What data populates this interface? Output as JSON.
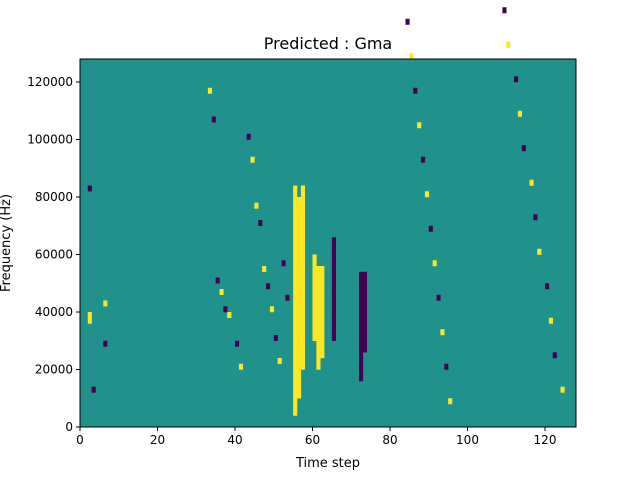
{
  "chart_data": {
    "type": "heatmap",
    "title": "Predicted : Gma",
    "xlabel": "Time step",
    "ylabel": "Frequency (Hz)",
    "xlim": [
      0,
      128
    ],
    "ylim": [
      0,
      128000
    ],
    "xticks": [
      0,
      20,
      40,
      60,
      80,
      100,
      120
    ],
    "xtick_labels": [
      "0",
      "20",
      "40",
      "60",
      "80",
      "100",
      "120"
    ],
    "yticks": [
      0,
      20000,
      40000,
      60000,
      80000,
      100000,
      120000
    ],
    "ytick_labels": [
      "0",
      "20000",
      "40000",
      "60000",
      "80000",
      "100000",
      "120000"
    ],
    "bins": {
      "time_steps": 128,
      "frequency_bins": 64,
      "bin_width_hz": 2000
    },
    "colormap": {
      "low": "#440154",
      "mid": "#21918c",
      "high": "#fde725"
    },
    "levels": {
      "background": "mid",
      "others": [
        "low",
        "high"
      ]
    },
    "vertical_bands": [
      {
        "time_step": 55,
        "value": "high",
        "frequency_range": [
          4000,
          84000
        ]
      },
      {
        "time_step": 56,
        "value": "high",
        "frequency_range": [
          10000,
          80000
        ]
      },
      {
        "time_step": 57,
        "value": "high",
        "frequency_range": [
          20000,
          84000
        ]
      },
      {
        "time_step": 60,
        "value": "high",
        "frequency_range": [
          30000,
          60000
        ]
      },
      {
        "time_step": 61,
        "value": "high",
        "frequency_range": [
          20000,
          56000
        ]
      },
      {
        "time_step": 62,
        "value": "high",
        "frequency_range": [
          24000,
          56000
        ]
      },
      {
        "time_step": 65,
        "value": "low",
        "frequency_range": [
          30000,
          66000
        ]
      },
      {
        "time_step": 72,
        "value": "low",
        "frequency_range": [
          16000,
          54000
        ]
      },
      {
        "time_step": 73,
        "value": "low",
        "frequency_range": [
          26000,
          54000
        ]
      }
    ],
    "cells": [
      [
        2,
        123,
        "low"
      ],
      [
        2,
        41,
        "low"
      ],
      [
        2,
        19,
        "high"
      ],
      [
        2,
        18,
        "high"
      ],
      [
        3,
        6,
        "low"
      ],
      [
        4,
        112,
        "high"
      ],
      [
        4,
        111,
        "high"
      ],
      [
        5,
        112,
        "high"
      ],
      [
        5,
        107,
        "high"
      ],
      [
        6,
        118,
        "low"
      ],
      [
        5,
        101,
        "high"
      ],
      [
        6,
        21,
        "high"
      ],
      [
        6,
        14,
        "low"
      ],
      [
        10,
        127,
        "high"
      ],
      [
        11,
        88,
        "high"
      ],
      [
        13,
        118,
        "low"
      ],
      [
        16,
        112,
        "high"
      ],
      [
        17,
        111,
        "high"
      ],
      [
        18,
        109,
        "low"
      ],
      [
        19,
        109,
        "high"
      ],
      [
        18,
        104,
        "low"
      ],
      [
        21,
        115,
        "low"
      ],
      [
        22,
        89,
        "low"
      ],
      [
        24,
        108,
        "low"
      ],
      [
        25,
        105,
        "high"
      ],
      [
        26,
        109,
        "high"
      ],
      [
        27,
        103,
        "high"
      ],
      [
        28,
        111,
        "low"
      ],
      [
        29,
        118,
        "high"
      ],
      [
        31,
        76,
        "low"
      ],
      [
        33,
        58,
        "high"
      ],
      [
        34,
        53,
        "low"
      ],
      [
        35,
        25,
        "low"
      ],
      [
        36,
        23,
        "high"
      ],
      [
        37,
        20,
        "low"
      ],
      [
        38,
        19,
        "high"
      ],
      [
        40,
        14,
        "low"
      ],
      [
        41,
        10,
        "high"
      ],
      [
        43,
        50,
        "low"
      ],
      [
        44,
        46,
        "high"
      ],
      [
        45,
        38,
        "high"
      ],
      [
        46,
        35,
        "low"
      ],
      [
        47,
        27,
        "high"
      ],
      [
        48,
        24,
        "low"
      ],
      [
        49,
        20,
        "high"
      ],
      [
        50,
        15,
        "low"
      ],
      [
        51,
        11,
        "high"
      ],
      [
        52,
        28,
        "low"
      ],
      [
        53,
        22,
        "low"
      ],
      [
        66,
        122,
        "low"
      ],
      [
        67,
        115,
        "high"
      ],
      [
        68,
        111,
        "low"
      ],
      [
        69,
        105,
        "high"
      ],
      [
        72,
        126,
        "low"
      ],
      [
        73,
        121,
        "low"
      ],
      [
        75,
        116,
        "high"
      ],
      [
        76,
        110,
        "low"
      ],
      [
        79,
        96,
        "high"
      ],
      [
        81,
        84,
        "low"
      ],
      [
        82,
        78,
        "high"
      ],
      [
        84,
        70,
        "low"
      ],
      [
        85,
        64,
        "high"
      ],
      [
        86,
        58,
        "low"
      ],
      [
        87,
        52,
        "high"
      ],
      [
        88,
        46,
        "low"
      ],
      [
        89,
        40,
        "high"
      ],
      [
        90,
        34,
        "low"
      ],
      [
        91,
        28,
        "high"
      ],
      [
        92,
        22,
        "low"
      ],
      [
        93,
        16,
        "high"
      ],
      [
        94,
        10,
        "low"
      ],
      [
        95,
        4,
        "high"
      ],
      [
        97,
        126,
        "high"
      ],
      [
        98,
        120,
        "low"
      ],
      [
        100,
        114,
        "high"
      ],
      [
        101,
        108,
        "low"
      ],
      [
        102,
        102,
        "high"
      ],
      [
        104,
        96,
        "low"
      ],
      [
        105,
        90,
        "high"
      ],
      [
        106,
        84,
        "low"
      ],
      [
        108,
        78,
        "high"
      ],
      [
        109,
        72,
        "low"
      ],
      [
        110,
        66,
        "high"
      ],
      [
        112,
        60,
        "low"
      ],
      [
        113,
        54,
        "high"
      ],
      [
        114,
        48,
        "low"
      ],
      [
        116,
        42,
        "high"
      ],
      [
        117,
        36,
        "low"
      ],
      [
        118,
        30,
        "high"
      ],
      [
        120,
        24,
        "low"
      ],
      [
        121,
        18,
        "high"
      ],
      [
        122,
        12,
        "low"
      ],
      [
        124,
        6,
        "high"
      ],
      [
        125,
        126,
        "low"
      ],
      [
        126,
        120,
        "high"
      ],
      [
        127,
        114,
        "low"
      ]
    ]
  }
}
